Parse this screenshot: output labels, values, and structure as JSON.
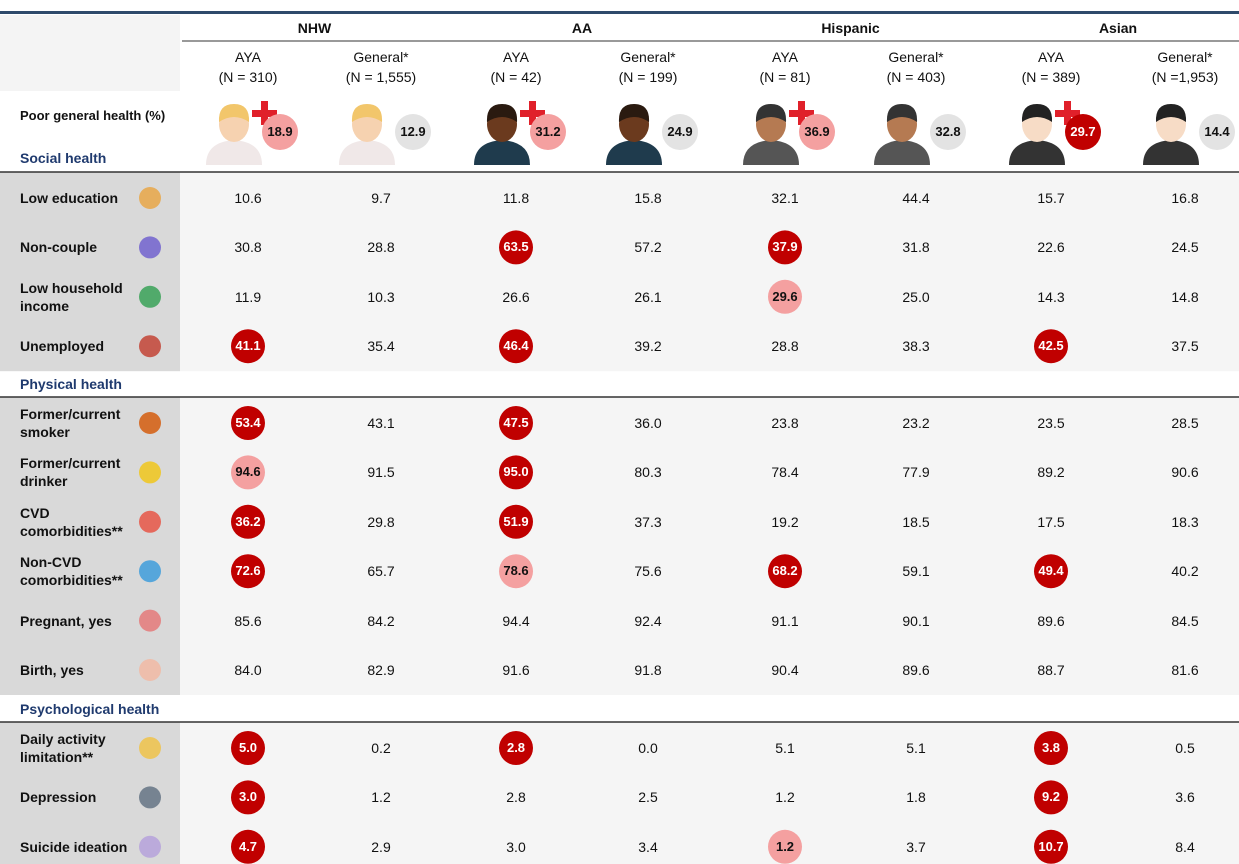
{
  "table": {
    "groups": [
      "NHW",
      "AA",
      "Hispanic",
      "Asian"
    ],
    "columns": [
      {
        "label": "AYA",
        "n": "(N = 310)"
      },
      {
        "label": "General*",
        "n": "(N = 1,555)"
      },
      {
        "label": "AYA",
        "n": "(N = 42)"
      },
      {
        "label": "General*",
        "n": "(N = 199)"
      },
      {
        "label": "AYA",
        "n": "(N = 81)"
      },
      {
        "label": "General*",
        "n": "(N = 403)"
      },
      {
        "label": "AYA",
        "n": "(N = 389)"
      },
      {
        "label": "General*",
        "n": "(N =1,953)"
      }
    ],
    "general_health": {
      "label": "Poor general health (%)",
      "values": [
        "18.9",
        "12.9",
        "31.2",
        "24.9",
        "36.9",
        "32.8",
        "29.7",
        "14.4"
      ],
      "colors": [
        "#f4a0a0",
        "#e3e3e3",
        "#f4a0a0",
        "#e3e3e3",
        "#f4a0a0",
        "#e3e3e3",
        "#c00000",
        "#e3e3e3"
      ]
    },
    "sections": [
      {
        "title": "Social health",
        "rows": [
          {
            "label": "Low education",
            "values": [
              "10.6",
              "9.7",
              "11.8",
              "15.8",
              "32.1",
              "44.4",
              "15.7",
              "16.8"
            ],
            "highlights": [
              null,
              null,
              null,
              null,
              null,
              null,
              null,
              null
            ]
          },
          {
            "label": "Non-couple",
            "values": [
              "30.8",
              "28.8",
              "63.5",
              "57.2",
              "37.9",
              "31.8",
              "22.6",
              "24.5"
            ],
            "highlights": [
              null,
              null,
              "#c00000",
              null,
              "#c00000",
              null,
              null,
              null
            ]
          },
          {
            "label": "Low household income",
            "values": [
              "11.9",
              "10.3",
              "26.6",
              "26.1",
              "29.6",
              "25.0",
              "14.3",
              "14.8"
            ],
            "highlights": [
              null,
              null,
              null,
              null,
              "#f4a0a0",
              null,
              null,
              null
            ]
          },
          {
            "label": "Unemployed",
            "values": [
              "41.1",
              "35.4",
              "46.4",
              "39.2",
              "28.8",
              "38.3",
              "42.5",
              "37.5"
            ],
            "highlights": [
              "#c00000",
              null,
              "#c00000",
              null,
              null,
              null,
              "#c00000",
              null
            ]
          }
        ]
      },
      {
        "title": "Physical health",
        "rows": [
          {
            "label": "Former/current smoker",
            "values": [
              "53.4",
              "43.1",
              "47.5",
              "36.0",
              "23.8",
              "23.2",
              "23.5",
              "28.5"
            ],
            "highlights": [
              "#c00000",
              null,
              "#c00000",
              null,
              null,
              null,
              null,
              null
            ]
          },
          {
            "label": "Former/current drinker",
            "values": [
              "94.6",
              "91.5",
              "95.0",
              "80.3",
              "78.4",
              "77.9",
              "89.2",
              "90.6"
            ],
            "highlights": [
              "#f4a0a0",
              null,
              "#c00000",
              null,
              null,
              null,
              null,
              null
            ]
          },
          {
            "label": "CVD comorbidities**",
            "values": [
              "36.2",
              "29.8",
              "51.9",
              "37.3",
              "19.2",
              "18.5",
              "17.5",
              "18.3"
            ],
            "highlights": [
              "#c00000",
              null,
              "#c00000",
              null,
              null,
              null,
              null,
              null
            ]
          },
          {
            "label": "Non-CVD comorbidities**",
            "values": [
              "72.6",
              "65.7",
              "78.6",
              "75.6",
              "68.2",
              "59.1",
              "49.4",
              "40.2"
            ],
            "highlights": [
              "#c00000",
              null,
              "#f4a0a0",
              null,
              "#c00000",
              null,
              "#c00000",
              null
            ]
          },
          {
            "label": "Pregnant, yes",
            "values": [
              "85.6",
              "84.2",
              "94.4",
              "92.4",
              "91.1",
              "90.1",
              "89.6",
              "84.5"
            ],
            "highlights": [
              null,
              null,
              null,
              null,
              null,
              null,
              null,
              null
            ]
          },
          {
            "label": "Birth, yes",
            "values": [
              "84.0",
              "82.9",
              "91.6",
              "91.8",
              "90.4",
              "89.6",
              "88.7",
              "81.6"
            ],
            "highlights": [
              null,
              null,
              null,
              null,
              null,
              null,
              null,
              null
            ]
          }
        ]
      },
      {
        "title": "Psychological health",
        "rows": [
          {
            "label": "Daily activity limitation**",
            "values": [
              "5.0",
              "0.2",
              "2.8",
              "0.0",
              "5.1",
              "5.1",
              "3.8",
              "0.5"
            ],
            "highlights": [
              "#c00000",
              null,
              "#c00000",
              null,
              null,
              null,
              "#c00000",
              null
            ]
          },
          {
            "label": "Depression",
            "values": [
              "3.0",
              "1.2",
              "2.8",
              "2.5",
              "1.2",
              "1.8",
              "9.2",
              "3.6"
            ],
            "highlights": [
              "#c00000",
              null,
              null,
              null,
              null,
              null,
              "#c00000",
              null
            ]
          },
          {
            "label": "Suicide ideation",
            "values": [
              "4.7",
              "2.9",
              "3.0",
              "3.4",
              "1.2",
              "3.7",
              "10.7",
              "8.4"
            ],
            "highlights": [
              "#c00000",
              null,
              null,
              null,
              "#f4a0a0",
              null,
              "#c00000",
              null
            ]
          }
        ]
      }
    ]
  }
}
